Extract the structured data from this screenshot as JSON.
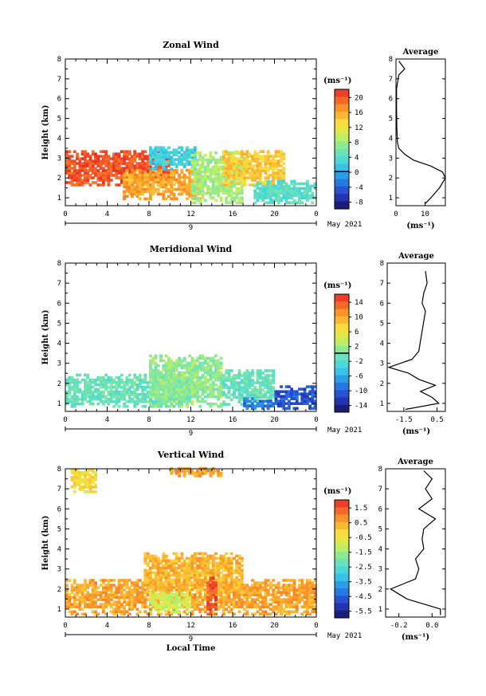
{
  "chart_data": [
    {
      "type": "heatmap",
      "title": "Zonal Wind",
      "ylabel": "Height (km)",
      "xticks": [
        "0",
        "4",
        "8",
        "12",
        "16",
        "20",
        "0"
      ],
      "yticks": [
        "1",
        "2",
        "3",
        "4",
        "5",
        "6",
        "7",
        "8"
      ],
      "xlim": [
        0,
        24
      ],
      "ylim": [
        0.6,
        8
      ],
      "date_label": "May 2021",
      "day_label": "9",
      "colorbar": {
        "unit": "(ms⁻¹)",
        "ticks": [
          "20",
          "16",
          "12",
          "8",
          "4",
          "0",
          "-4",
          "-8"
        ],
        "vmin": -10,
        "vmax": 22,
        "marker": 0
      },
      "avg": {
        "title": "Average",
        "xticks": [
          "0",
          "10"
        ],
        "xlim": [
          0,
          17
        ],
        "xlabel": "(ms⁻¹)"
      },
      "field_regions": [
        {
          "x0": 0,
          "x1": 10,
          "y0": 1.6,
          "y1": 3.4,
          "value": 20
        },
        {
          "x0": 5.5,
          "x1": 13,
          "y0": 0.9,
          "y1": 2.4,
          "value": 16
        },
        {
          "x0": 8,
          "x1": 12.5,
          "y0": 2.4,
          "y1": 3.6,
          "value": 2
        },
        {
          "x0": 12,
          "x1": 17,
          "y0": 0.7,
          "y1": 3.3,
          "value": 8
        },
        {
          "x0": 15,
          "x1": 21,
          "y0": 1.6,
          "y1": 3.3,
          "value": 14
        },
        {
          "x0": 18,
          "x1": 24,
          "y0": 0.7,
          "y1": 1.8,
          "value": 4
        }
      ],
      "profile": {
        "heights": [
          0.7,
          1.0,
          1.5,
          2.0,
          2.3,
          2.6,
          2.9,
          3.2,
          3.5,
          3.8,
          4.5,
          5.5,
          6.5,
          7.2,
          7.5,
          7.9
        ],
        "values": [
          10,
          12,
          15,
          17,
          16,
          12,
          6,
          3,
          1,
          0.5,
          0.3,
          0.2,
          0.2,
          1,
          3,
          1
        ]
      }
    },
    {
      "type": "heatmap",
      "title": "Meridional Wind",
      "ylabel": "Height (km)",
      "xticks": [
        "0",
        "4",
        "8",
        "12",
        "16",
        "20",
        "0"
      ],
      "yticks": [
        "1",
        "2",
        "3",
        "4",
        "5",
        "6",
        "7",
        "8"
      ],
      "xlim": [
        0,
        24
      ],
      "ylim": [
        0.6,
        8
      ],
      "date_label": "May 2021",
      "day_label": "9",
      "colorbar": {
        "unit": "(ms⁻¹)",
        "ticks": [
          "14",
          "10",
          "6",
          "2",
          "-2",
          "-6",
          "-10",
          "-14"
        ],
        "vmin": -16,
        "vmax": 16,
        "marker": 0
      },
      "avg": {
        "title": "Average",
        "xticks": [
          "-1.5",
          "0.5"
        ],
        "xlim": [
          -2.5,
          1.0
        ],
        "xlabel": "(ms⁻¹)"
      },
      "field_regions": [
        {
          "x0": 0,
          "x1": 12,
          "y0": 0.8,
          "y1": 2.4,
          "value": -1
        },
        {
          "x0": 8,
          "x1": 15,
          "y0": 0.8,
          "y1": 3.4,
          "value": 1
        },
        {
          "x0": 15,
          "x1": 20,
          "y0": 0.9,
          "y1": 2.6,
          "value": -1
        },
        {
          "x0": 17,
          "x1": 20,
          "y0": 0.7,
          "y1": 1.2,
          "value": -9
        },
        {
          "x0": 20,
          "x1": 24,
          "y0": 0.7,
          "y1": 1.8,
          "value": -11
        }
      ],
      "profile": {
        "heights": [
          0.7,
          1.0,
          1.3,
          1.6,
          1.9,
          2.2,
          2.5,
          2.8,
          3.2,
          3.6,
          5.6,
          6.0,
          6.5,
          7.0,
          7.6
        ],
        "values": [
          -1.4,
          0.6,
          0.2,
          -0.5,
          0.4,
          -0.6,
          -1.2,
          -2.4,
          -1.0,
          -0.6,
          -0.2,
          -0.4,
          -0.3,
          -0.1,
          -0.2
        ]
      }
    },
    {
      "type": "heatmap",
      "title": "Vertical Wind",
      "ylabel": "Height (km)",
      "xlabel": "Local Time",
      "xticks": [
        "0",
        "4",
        "8",
        "12",
        "16",
        "20",
        "0"
      ],
      "yticks": [
        "1",
        "2",
        "3",
        "4",
        "5",
        "6",
        "7",
        "8"
      ],
      "xlim": [
        0,
        24
      ],
      "ylim": [
        0.6,
        8
      ],
      "date_label": "May 2021",
      "day_label": "9",
      "colorbar": {
        "unit": "(ms⁻¹)",
        "ticks": [
          "1.5",
          "0.5",
          "-0.5",
          "-1.5",
          "-2.5",
          "-3.5",
          "-4.5",
          "-5.5"
        ],
        "vmin": -6,
        "vmax": 2,
        "marker": null
      },
      "avg": {
        "title": "Average",
        "xticks": [
          "-0.2",
          "0.0"
        ],
        "xlim": [
          -0.28,
          0.08
        ],
        "xlabel": "(ms⁻¹)"
      },
      "field_regions": [
        {
          "x0": 0,
          "x1": 24,
          "y0": 0.7,
          "y1": 2.4,
          "value": 0.5
        },
        {
          "x0": 7.5,
          "x1": 17,
          "y0": 1.8,
          "y1": 3.8,
          "value": 0.3
        },
        {
          "x0": 8,
          "x1": 12,
          "y0": 0.8,
          "y1": 1.8,
          "value": -1.0
        },
        {
          "x0": 13.5,
          "x1": 14.5,
          "y0": 0.7,
          "y1": 2.6,
          "value": 1.5
        },
        {
          "x0": 0.5,
          "x1": 3,
          "y0": 6.8,
          "y1": 8.0,
          "value": -0.3
        },
        {
          "x0": 10,
          "x1": 15,
          "y0": 7.6,
          "y1": 8.0,
          "value": 0.6
        }
      ],
      "profile": {
        "heights": [
          0.7,
          1.0,
          1.5,
          2.0,
          2.5,
          3.0,
          3.5,
          4.0,
          4.5,
          5.0,
          5.5,
          6.0,
          6.5,
          7.0,
          7.5,
          7.9
        ],
        "values": [
          0.05,
          0.05,
          -0.15,
          -0.25,
          -0.1,
          -0.08,
          -0.1,
          -0.05,
          -0.06,
          -0.05,
          0.02,
          -0.08,
          0.0,
          -0.04,
          0.0,
          -0.05
        ]
      }
    }
  ]
}
